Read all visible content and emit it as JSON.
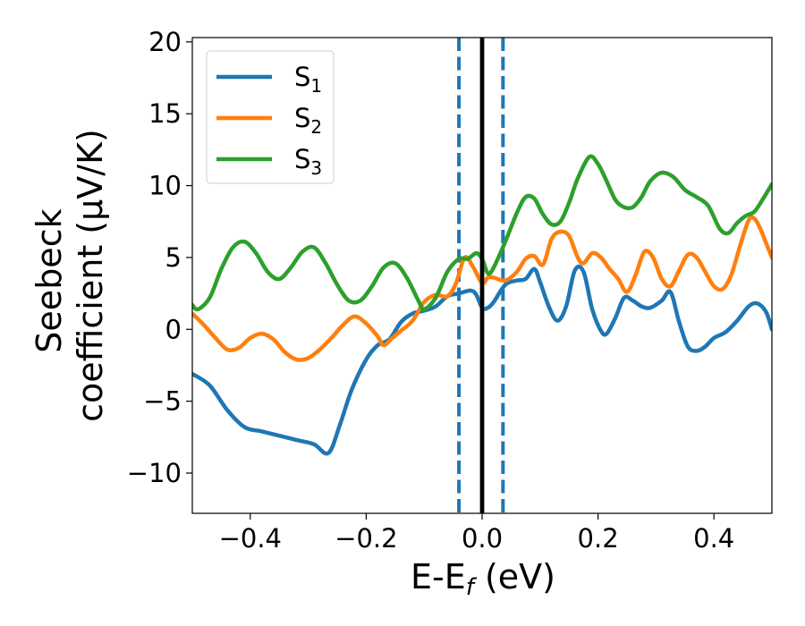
{
  "chart_data": {
    "type": "line",
    "title": "",
    "xlabel": {
      "main": "E-E",
      "sub": "f",
      "unit": " (eV)"
    },
    "ylabel": {
      "line1": "Seebeck",
      "line2": "coefficient  (μV/K)"
    },
    "xlim": [
      -0.5,
      0.5
    ],
    "ylim": [
      -12.8,
      20.3
    ],
    "xticks": [
      -0.4,
      -0.2,
      0.0,
      0.2,
      0.4
    ],
    "xtick_labels": [
      "−0.4",
      "−0.2",
      "0.0",
      "0.2",
      "0.4"
    ],
    "yticks": [
      -10,
      -5,
      0,
      5,
      10,
      15,
      20
    ],
    "ytick_labels": [
      "−10",
      "−5",
      "0",
      "5",
      "10",
      "15",
      "20"
    ],
    "grid": false,
    "legend_position": "top-left",
    "vlines": [
      {
        "x": -0.04,
        "style": "dashed",
        "color": "#1f77b4"
      },
      {
        "x": 0.0,
        "style": "solid",
        "color": "#000000"
      },
      {
        "x": 0.0,
        "style": "dashed",
        "color": "#1f77b4"
      },
      {
        "x": 0.036,
        "style": "dashed",
        "color": "#1f77b4"
      }
    ],
    "series": [
      {
        "name": "S",
        "sub": "1",
        "color": "#1f77b4",
        "x": [
          -0.5,
          -0.47,
          -0.44,
          -0.41,
          -0.38,
          -0.35,
          -0.32,
          -0.29,
          -0.265,
          -0.245,
          -0.225,
          -0.2,
          -0.18,
          -0.16,
          -0.14,
          -0.12,
          -0.1,
          -0.08,
          -0.06,
          -0.04,
          -0.02,
          -0.01,
          0.0,
          0.01,
          0.02,
          0.04,
          0.06,
          0.075,
          0.09,
          0.1,
          0.115,
          0.13,
          0.145,
          0.16,
          0.175,
          0.19,
          0.205,
          0.215,
          0.23,
          0.245,
          0.26,
          0.275,
          0.29,
          0.31,
          0.325,
          0.34,
          0.355,
          0.37,
          0.385,
          0.4,
          0.42,
          0.44,
          0.46,
          0.475,
          0.49,
          0.5
        ],
        "y": [
          -3.1,
          -3.9,
          -5.6,
          -6.8,
          -7.1,
          -7.4,
          -7.7,
          -8.0,
          -8.6,
          -6.6,
          -4.2,
          -2.1,
          -1.1,
          -0.7,
          0.5,
          1.1,
          1.3,
          1.6,
          2.3,
          2.5,
          2.7,
          2.4,
          1.5,
          1.5,
          1.9,
          3.1,
          3.4,
          3.5,
          4.2,
          3.3,
          1.6,
          0.6,
          1.6,
          4.1,
          4.0,
          1.4,
          -0.1,
          -0.3,
          0.8,
          2.2,
          2.0,
          1.6,
          1.5,
          2.0,
          2.6,
          0.5,
          -1.2,
          -1.5,
          -1.2,
          -0.6,
          -0.2,
          0.6,
          1.6,
          1.8,
          1.2,
          0.0
        ]
      },
      {
        "name": "S",
        "sub": "2",
        "color": "#ff7f0e",
        "x": [
          -0.5,
          -0.48,
          -0.46,
          -0.44,
          -0.42,
          -0.4,
          -0.38,
          -0.36,
          -0.34,
          -0.32,
          -0.3,
          -0.28,
          -0.26,
          -0.24,
          -0.22,
          -0.2,
          -0.18,
          -0.17,
          -0.155,
          -0.14,
          -0.12,
          -0.1,
          -0.08,
          -0.06,
          -0.045,
          -0.03,
          -0.015,
          0.0,
          0.01,
          0.02,
          0.04,
          0.06,
          0.075,
          0.09,
          0.105,
          0.12,
          0.135,
          0.15,
          0.165,
          0.175,
          0.19,
          0.205,
          0.22,
          0.235,
          0.25,
          0.265,
          0.28,
          0.295,
          0.31,
          0.325,
          0.34,
          0.355,
          0.37,
          0.385,
          0.4,
          0.415,
          0.43,
          0.445,
          0.46,
          0.47,
          0.48,
          0.49,
          0.5
        ],
        "y": [
          1.1,
          0.3,
          -0.6,
          -1.4,
          -1.3,
          -0.6,
          -0.3,
          -0.7,
          -1.6,
          -2.1,
          -2.0,
          -1.4,
          -0.6,
          0.3,
          0.9,
          0.4,
          -0.5,
          -1.1,
          -0.6,
          -0.1,
          0.6,
          1.9,
          2.4,
          2.3,
          3.2,
          5.0,
          4.3,
          3.2,
          3.6,
          3.6,
          3.4,
          4.0,
          4.9,
          5.1,
          4.5,
          6.3,
          6.8,
          6.5,
          5.0,
          4.6,
          5.3,
          5.0,
          4.2,
          3.5,
          2.6,
          3.8,
          5.4,
          5.0,
          3.5,
          3.0,
          4.1,
          5.2,
          5.0,
          4.0,
          3.0,
          2.8,
          3.8,
          5.8,
          7.6,
          7.7,
          7.0,
          6.0,
          5.0
        ]
      },
      {
        "name": "S",
        "sub": "3",
        "color": "#2ca02c",
        "x": [
          -0.5,
          -0.49,
          -0.47,
          -0.45,
          -0.43,
          -0.41,
          -0.39,
          -0.37,
          -0.35,
          -0.33,
          -0.31,
          -0.29,
          -0.27,
          -0.25,
          -0.23,
          -0.21,
          -0.19,
          -0.17,
          -0.15,
          -0.13,
          -0.11,
          -0.1,
          -0.08,
          -0.06,
          -0.04,
          -0.025,
          -0.01,
          0.0,
          0.01,
          0.02,
          0.04,
          0.06,
          0.075,
          0.09,
          0.105,
          0.12,
          0.135,
          0.15,
          0.165,
          0.185,
          0.2,
          0.215,
          0.23,
          0.245,
          0.26,
          0.275,
          0.29,
          0.31,
          0.33,
          0.35,
          0.37,
          0.39,
          0.41,
          0.425,
          0.44,
          0.455,
          0.47,
          0.485,
          0.5
        ],
        "y": [
          1.7,
          1.4,
          2.2,
          4.2,
          5.7,
          6.1,
          5.3,
          4.0,
          3.5,
          4.3,
          5.4,
          5.7,
          4.6,
          3.1,
          2.0,
          2.0,
          3.0,
          4.3,
          4.6,
          3.6,
          2.0,
          1.4,
          2.2,
          4.0,
          4.9,
          4.9,
          5.3,
          4.9,
          3.9,
          4.3,
          6.1,
          8.1,
          9.2,
          9.1,
          8.0,
          7.3,
          7.5,
          8.8,
          10.5,
          12.0,
          11.5,
          10.3,
          9.0,
          8.5,
          8.5,
          9.2,
          10.3,
          10.9,
          10.6,
          9.7,
          9.2,
          8.6,
          7.0,
          6.7,
          7.4,
          7.9,
          8.2,
          9.1,
          10.1
        ]
      }
    ]
  }
}
